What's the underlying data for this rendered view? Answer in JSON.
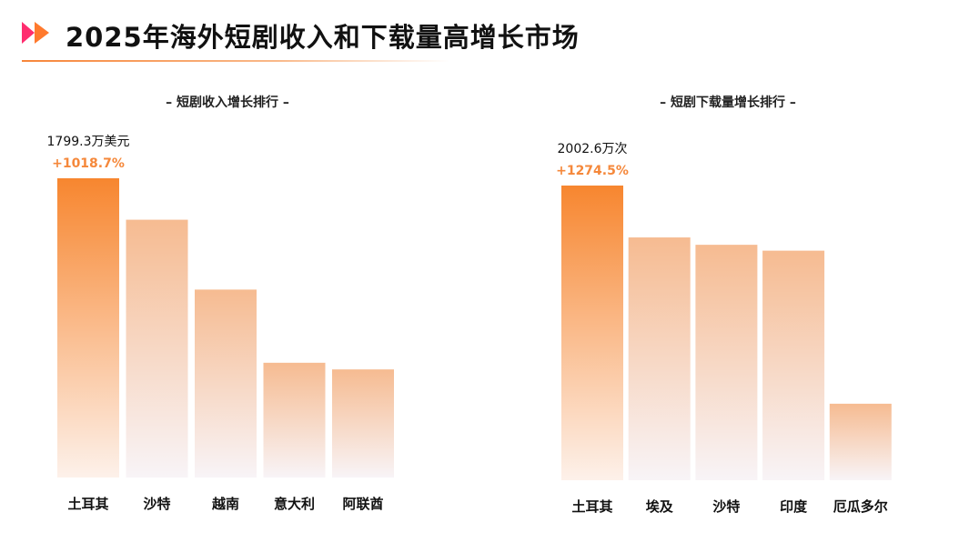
{
  "header": {
    "title": "2025年海外短剧收入和下载量高增长市场",
    "accent_color": "#f7863a",
    "icon": "double-chevron-right-icon"
  },
  "chart_data": [
    {
      "type": "bar",
      "title": "– 短剧收入增长排行 –",
      "categories": [
        "土耳其",
        "沙特",
        "越南",
        "意大利",
        "阿联酋"
      ],
      "values": [
        1799.3,
        1550,
        1130,
        690,
        650
      ],
      "unit": "万美元",
      "annotation": {
        "category": "土耳其",
        "value_label": "1799.3万美元",
        "growth_label": "+1018.7%"
      },
      "highlight_color": "#f7862f",
      "bar_color": "#f6bb91",
      "ylim": [
        0,
        1799.3
      ]
    },
    {
      "type": "bar",
      "title": "– 短剧下载量增长排行 –",
      "categories": [
        "土耳其",
        "埃及",
        "沙特",
        "印度",
        "厄瓜多尔"
      ],
      "values": [
        2002.6,
        1650,
        1600,
        1560,
        520
      ],
      "unit": "万次",
      "annotation": {
        "category": "土耳其",
        "value_label": "2002.6万次",
        "growth_label": "+1274.5%"
      },
      "highlight_color": "#f7862f",
      "bar_color": "#f6bb91",
      "ylim": [
        0,
        2002.6
      ]
    }
  ]
}
